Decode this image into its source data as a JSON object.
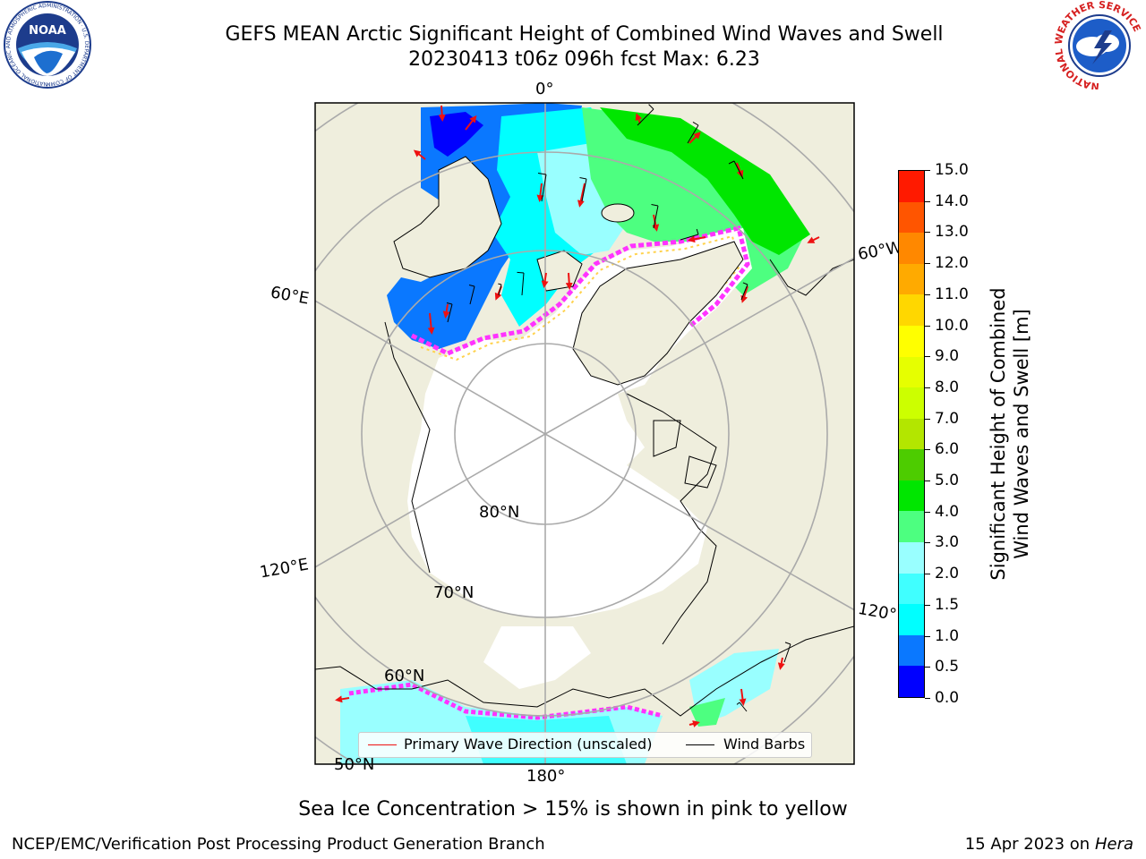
{
  "header": {
    "title_line1": "GEFS MEAN Arctic Significant Height of Combined Wind Waves and Swell",
    "title_line2": "20230413 t06z 096h fcst   Max: 6.23"
  },
  "logos": {
    "left": "NOAA",
    "left_ring_text": "NATIONAL OCEANIC AND ATMOSPHERIC ADMINISTRATION · U.S. DEPARTMENT OF COMMERCE",
    "right_ring_text": "NATIONAL WEATHER SERVICE"
  },
  "map": {
    "graticule_labels": {
      "lon_0": "0°",
      "lon_60w": "60°W",
      "lon_60e": "60°E",
      "lon_120e": "120°E",
      "lon_120w": "120°W",
      "lon_180": "180°",
      "lat_80": "80°N",
      "lat_70": "70°N",
      "lat_60": "60°N",
      "lat_50": "50°N"
    },
    "colors": {
      "land": "#efeedd",
      "sea_ice_open": "#ffffff",
      "grid": "#aaaaaa",
      "ice_edge_pink": "#ff33ff",
      "ice_edge_yellow": "#ffd24d",
      "wave_arrow": "#ee1111"
    }
  },
  "legend": {
    "items": [
      {
        "label": "Primary Wave Direction (unscaled)",
        "color": "#ee1111"
      },
      {
        "label": "Wind Barbs",
        "color": "#000000"
      }
    ]
  },
  "colorbar": {
    "label_line1": "Significant Height of Combined",
    "label_line2": "Wind Waves and Swell [m]",
    "ticks": [
      "0.0",
      "0.5",
      "1.0",
      "1.5",
      "2.0",
      "3.0",
      "4.0",
      "5.0",
      "6.0",
      "7.0",
      "8.0",
      "9.0",
      "10.0",
      "11.0",
      "12.0",
      "13.0",
      "14.0",
      "15.0"
    ],
    "colors": [
      "#0000ff",
      "#0a78ff",
      "#00ffff",
      "#40ffff",
      "#99ffff",
      "#4dff80",
      "#00e600",
      "#4dcc00",
      "#b3e600",
      "#ccff00",
      "#e6ff00",
      "#ffff00",
      "#ffd700",
      "#ffaa00",
      "#ff8800",
      "#ff5500",
      "#ff1a00"
    ]
  },
  "footnote": "Sea Ice Concentration > 15% is shown in pink to yellow",
  "footer": {
    "credit": "NCEP/EMC/Verification Post Processing Product Generation Branch",
    "date_prefix": "15 Apr 2023 on ",
    "date_machine": "Hera"
  }
}
